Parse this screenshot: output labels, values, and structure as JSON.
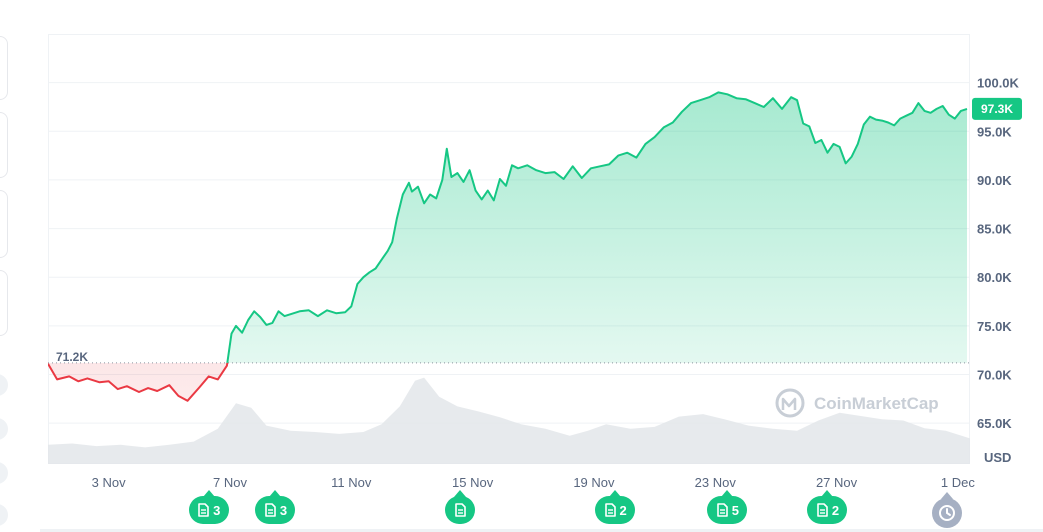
{
  "chart_data": {
    "type": "area",
    "currency_label": "USD",
    "reference_price": 71200,
    "reference_label": "71.2K",
    "current_price": 97300,
    "current_label": "97.3K",
    "yticks": [
      {
        "value": 100000,
        "label": "100.0K"
      },
      {
        "value": 95000,
        "label": "95.0K"
      },
      {
        "value": 90000,
        "label": "90.0K"
      },
      {
        "value": 85000,
        "label": "85.0K"
      },
      {
        "value": 80000,
        "label": "80.0K"
      },
      {
        "value": 75000,
        "label": "75.0K"
      },
      {
        "value": 70000,
        "label": "70.0K"
      },
      {
        "value": 65000,
        "label": "65.0K"
      }
    ],
    "ylim": [
      60800,
      105000
    ],
    "xlim": [
      0.0,
      30.4
    ],
    "xticks": [
      {
        "day": 2,
        "label": "3 Nov"
      },
      {
        "day": 6,
        "label": "7 Nov"
      },
      {
        "day": 10,
        "label": "11 Nov"
      },
      {
        "day": 14,
        "label": "15 Nov"
      },
      {
        "day": 18,
        "label": "19 Nov"
      },
      {
        "day": 22,
        "label": "23 Nov"
      },
      {
        "day": 26,
        "label": "27 Nov"
      },
      {
        "day": 30,
        "label": "1 Dec"
      }
    ],
    "price_series": [
      [
        0.0,
        71100
      ],
      [
        0.3,
        69500
      ],
      [
        0.7,
        69800
      ],
      [
        1.0,
        69300
      ],
      [
        1.3,
        69600
      ],
      [
        1.7,
        69200
      ],
      [
        2.0,
        69300
      ],
      [
        2.3,
        68500
      ],
      [
        2.6,
        68800
      ],
      [
        3.0,
        68200
      ],
      [
        3.3,
        68600
      ],
      [
        3.6,
        68300
      ],
      [
        4.0,
        68900
      ],
      [
        4.3,
        67800
      ],
      [
        4.6,
        67300
      ],
      [
        5.0,
        68700
      ],
      [
        5.3,
        69800
      ],
      [
        5.6,
        69500
      ],
      [
        5.9,
        70900
      ],
      [
        6.05,
        74200
      ],
      [
        6.2,
        75000
      ],
      [
        6.4,
        74300
      ],
      [
        6.6,
        75600
      ],
      [
        6.8,
        76500
      ],
      [
        7.0,
        75900
      ],
      [
        7.2,
        75100
      ],
      [
        7.4,
        75300
      ],
      [
        7.6,
        76500
      ],
      [
        7.8,
        76000
      ],
      [
        8.0,
        76200
      ],
      [
        8.3,
        76500
      ],
      [
        8.6,
        76600
      ],
      [
        8.9,
        76000
      ],
      [
        9.2,
        76600
      ],
      [
        9.5,
        76300
      ],
      [
        9.8,
        76400
      ],
      [
        10.0,
        77000
      ],
      [
        10.2,
        79300
      ],
      [
        10.4,
        80000
      ],
      [
        10.6,
        80500
      ],
      [
        10.8,
        80900
      ],
      [
        11.0,
        81800
      ],
      [
        11.2,
        82700
      ],
      [
        11.35,
        83600
      ],
      [
        11.5,
        86000
      ],
      [
        11.7,
        88500
      ],
      [
        11.9,
        89700
      ],
      [
        12.0,
        88800
      ],
      [
        12.2,
        89300
      ],
      [
        12.4,
        87600
      ],
      [
        12.6,
        88500
      ],
      [
        12.8,
        88100
      ],
      [
        13.0,
        90000
      ],
      [
        13.15,
        93200
      ],
      [
        13.3,
        90300
      ],
      [
        13.5,
        90700
      ],
      [
        13.7,
        89800
      ],
      [
        13.9,
        91000
      ],
      [
        14.1,
        88900
      ],
      [
        14.3,
        88000
      ],
      [
        14.5,
        88900
      ],
      [
        14.7,
        87900
      ],
      [
        14.9,
        90100
      ],
      [
        15.1,
        89400
      ],
      [
        15.3,
        91500
      ],
      [
        15.5,
        91200
      ],
      [
        15.8,
        91500
      ],
      [
        16.1,
        91000
      ],
      [
        16.4,
        90700
      ],
      [
        16.7,
        90800
      ],
      [
        17.0,
        90100
      ],
      [
        17.3,
        91400
      ],
      [
        17.6,
        90200
      ],
      [
        17.9,
        91200
      ],
      [
        18.2,
        91400
      ],
      [
        18.5,
        91600
      ],
      [
        18.8,
        92500
      ],
      [
        19.1,
        92800
      ],
      [
        19.4,
        92300
      ],
      [
        19.7,
        93700
      ],
      [
        20.0,
        94400
      ],
      [
        20.3,
        95400
      ],
      [
        20.6,
        95900
      ],
      [
        20.9,
        97000
      ],
      [
        21.2,
        97900
      ],
      [
        21.5,
        98200
      ],
      [
        21.8,
        98500
      ],
      [
        22.1,
        99000
      ],
      [
        22.4,
        98800
      ],
      [
        22.7,
        98400
      ],
      [
        23.0,
        98300
      ],
      [
        23.3,
        97900
      ],
      [
        23.6,
        97500
      ],
      [
        23.9,
        98400
      ],
      [
        24.2,
        97300
      ],
      [
        24.5,
        98500
      ],
      [
        24.7,
        98200
      ],
      [
        24.9,
        95800
      ],
      [
        25.1,
        95500
      ],
      [
        25.3,
        93800
      ],
      [
        25.5,
        94100
      ],
      [
        25.7,
        92800
      ],
      [
        25.9,
        93700
      ],
      [
        26.1,
        93400
      ],
      [
        26.3,
        91700
      ],
      [
        26.5,
        92400
      ],
      [
        26.7,
        93700
      ],
      [
        26.9,
        95700
      ],
      [
        27.1,
        96500
      ],
      [
        27.3,
        96200
      ],
      [
        27.5,
        96100
      ],
      [
        27.7,
        95900
      ],
      [
        27.9,
        95600
      ],
      [
        28.1,
        96300
      ],
      [
        28.3,
        96600
      ],
      [
        28.5,
        96900
      ],
      [
        28.7,
        97900
      ],
      [
        28.9,
        97100
      ],
      [
        29.1,
        96900
      ],
      [
        29.3,
        97300
      ],
      [
        29.5,
        97600
      ],
      [
        29.7,
        96700
      ],
      [
        29.9,
        96300
      ],
      [
        30.1,
        97100
      ],
      [
        30.3,
        97300
      ]
    ],
    "volume_series": [
      [
        0.0,
        0.3
      ],
      [
        0.8,
        0.32
      ],
      [
        1.6,
        0.28
      ],
      [
        2.4,
        0.3
      ],
      [
        3.2,
        0.26
      ],
      [
        4.0,
        0.3
      ],
      [
        4.8,
        0.35
      ],
      [
        5.6,
        0.55
      ],
      [
        6.2,
        0.95
      ],
      [
        6.7,
        0.88
      ],
      [
        7.2,
        0.6
      ],
      [
        8.0,
        0.52
      ],
      [
        8.8,
        0.5
      ],
      [
        9.6,
        0.47
      ],
      [
        10.4,
        0.5
      ],
      [
        11.0,
        0.62
      ],
      [
        11.6,
        0.9
      ],
      [
        12.1,
        1.3
      ],
      [
        12.4,
        1.35
      ],
      [
        12.9,
        1.05
      ],
      [
        13.5,
        0.9
      ],
      [
        14.2,
        0.82
      ],
      [
        14.9,
        0.73
      ],
      [
        15.6,
        0.62
      ],
      [
        16.4,
        0.55
      ],
      [
        17.2,
        0.44
      ],
      [
        17.8,
        0.52
      ],
      [
        18.4,
        0.62
      ],
      [
        19.2,
        0.55
      ],
      [
        20.0,
        0.58
      ],
      [
        20.8,
        0.74
      ],
      [
        21.6,
        0.78
      ],
      [
        22.3,
        0.7
      ],
      [
        23.1,
        0.6
      ],
      [
        23.9,
        0.55
      ],
      [
        24.7,
        0.52
      ],
      [
        25.4,
        0.68
      ],
      [
        26.1,
        0.8
      ],
      [
        26.8,
        0.75
      ],
      [
        27.5,
        0.7
      ],
      [
        28.2,
        0.68
      ],
      [
        28.9,
        0.56
      ],
      [
        29.6,
        0.52
      ],
      [
        30.4,
        0.4
      ]
    ]
  },
  "watermark": "CoinMarketCap",
  "events": [
    {
      "count": "3"
    },
    {
      "count": "3"
    },
    {
      "count": ""
    },
    {
      "count": "2"
    },
    {
      "count": "5"
    },
    {
      "count": "2"
    }
  ],
  "colors": {
    "up": "#16c784",
    "down": "#ea3943",
    "grid": "#eff2f5",
    "text": "#58667e",
    "history_button": "#a6b0c3"
  },
  "icons": {
    "event": "document-icon",
    "history": "clock-history-icon",
    "logo": "coinmarketcap-logo-icon"
  }
}
